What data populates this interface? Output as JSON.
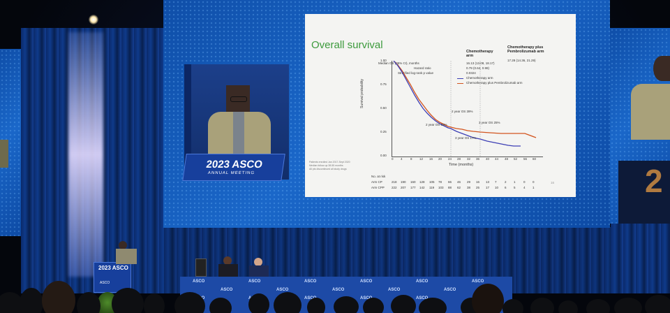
{
  "slide": {
    "title": "Overall survival",
    "col_chemo": "Chemotherapy arm",
    "col_pembro": "Chemotherapy plus Pembrolizumab arm",
    "row_median_label": "Median OS (95% CI), months",
    "row_median_chemo": "16.13 (13.08, 18.17)",
    "row_median_pembro": "17.28 (14.36, 21.29)",
    "row_hr_label": "Hazard ratio",
    "row_hr_value": "0.79 (0.64, 0.98)",
    "row_p_label": "Stratified log-rank p value",
    "row_p_value": "0.0324",
    "legend_chemo": "Chemotherapy arm",
    "legend_pembro": "Chemotherapy plus Pembrolizumab arm",
    "ylabel": "Survival probability",
    "xlabel": "Time (months)",
    "yticks": [
      "1.00",
      "0.75",
      "0.50",
      "0.25",
      "0.00"
    ],
    "xticks": [
      "0",
      "4",
      "8",
      "12",
      "16",
      "20",
      "24",
      "28",
      "32",
      "36",
      "40",
      "44",
      "48",
      "52",
      "56",
      "60"
    ],
    "annot_2yr_pembro": "2 year OS 39%",
    "annot_2yr_chemo": "2 year OS 33%",
    "annot_3yr_pembro": "3 year OS 25%",
    "annot_3yr_chemo": "3 year OS 17%",
    "footnote_1": "Patients enrolled Jan 2017-Sept 2020",
    "footnote_2": "Median follow-up 38.55 months",
    "footnote_3": "All pts discontinued all study drugs",
    "risk_header": "No. at risk",
    "risk_label_cp": "Arm CP",
    "risk_label_cpp": "Arm CPP",
    "risk_cp": [
      "218",
      "190",
      "160",
      "128",
      "105",
      "78",
      "66",
      "46",
      "29",
      "16",
      "13",
      "7",
      "2",
      "1",
      "0",
      "0"
    ],
    "risk_cpp": [
      "222",
      "207",
      "177",
      "142",
      "119",
      "103",
      "88",
      "62",
      "38",
      "25",
      "17",
      "10",
      "6",
      "5",
      "4",
      "1"
    ],
    "page_no": "16",
    "colors": {
      "chemo": "#3d3fb5",
      "pembro": "#d2551f"
    }
  },
  "branding": {
    "year_asco": "2023 ASCO",
    "annual_meeting": "ANNUAL MEETING",
    "asco": "ASCO",
    "right_screen_digit": "2"
  }
}
